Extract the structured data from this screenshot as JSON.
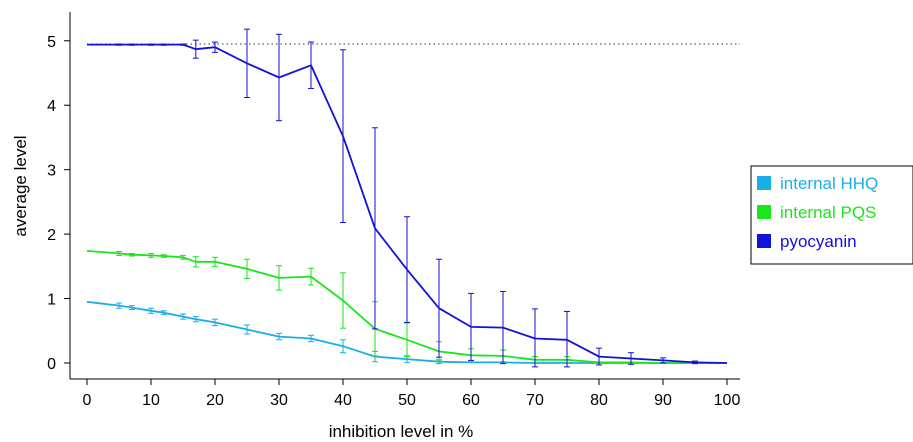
{
  "chart_data": {
    "type": "line",
    "title": "",
    "xlabel": "inhibition level in %",
    "ylabel": "average level",
    "xlim": [
      0,
      100
    ],
    "ylim": [
      0,
      5
    ],
    "xticks": [
      0,
      10,
      20,
      30,
      40,
      50,
      60,
      70,
      80,
      90,
      100
    ],
    "yticks": [
      0,
      1,
      2,
      3,
      4,
      5
    ],
    "x_tick_labels": [
      "0",
      "10",
      "20",
      "30",
      "40",
      "50",
      "60",
      "70",
      "80",
      "90",
      "100"
    ],
    "y_tick_labels": [
      "0",
      "1",
      "2",
      "3",
      "4",
      "5"
    ],
    "grid": false,
    "reference_line": {
      "y": 4.95,
      "style": "dotted"
    },
    "legend_position": "right",
    "series": [
      {
        "name": "internal HHQ",
        "color": "#1aaee8",
        "points": [
          {
            "x": 0,
            "y": 0.95
          },
          {
            "x": 5,
            "y": 0.89,
            "err": 0.04
          },
          {
            "x": 7,
            "y": 0.86,
            "err": 0.03
          },
          {
            "x": 10,
            "y": 0.81,
            "err": 0.04
          },
          {
            "x": 12,
            "y": 0.78,
            "err": 0.03
          },
          {
            "x": 15,
            "y": 0.72,
            "err": 0.04
          },
          {
            "x": 17,
            "y": 0.68,
            "err": 0.04
          },
          {
            "x": 20,
            "y": 0.63,
            "err": 0.05
          },
          {
            "x": 25,
            "y": 0.52,
            "err": 0.07
          },
          {
            "x": 30,
            "y": 0.41,
            "err": 0.05
          },
          {
            "x": 35,
            "y": 0.38,
            "err": 0.05
          },
          {
            "x": 40,
            "y": 0.26,
            "err": 0.1
          },
          {
            "x": 45,
            "y": 0.1,
            "err": 0.08
          },
          {
            "x": 50,
            "y": 0.06,
            "err": 0.05
          },
          {
            "x": 55,
            "y": 0.02,
            "err": 0.03
          },
          {
            "x": 60,
            "y": 0.01
          },
          {
            "x": 65,
            "y": 0.01
          },
          {
            "x": 70,
            "y": 0.0
          },
          {
            "x": 75,
            "y": 0.0
          },
          {
            "x": 80,
            "y": 0.0
          },
          {
            "x": 85,
            "y": 0.0
          },
          {
            "x": 90,
            "y": 0.0
          },
          {
            "x": 95,
            "y": 0.0
          },
          {
            "x": 100,
            "y": 0.0
          }
        ]
      },
      {
        "name": "internal PQS",
        "color": "#1be51b",
        "points": [
          {
            "x": 0,
            "y": 1.74
          },
          {
            "x": 5,
            "y": 1.7,
            "err": 0.03
          },
          {
            "x": 7,
            "y": 1.68,
            "err": 0.02
          },
          {
            "x": 10,
            "y": 1.67,
            "err": 0.03
          },
          {
            "x": 12,
            "y": 1.66,
            "err": 0.02
          },
          {
            "x": 15,
            "y": 1.64,
            "err": 0.03
          },
          {
            "x": 17,
            "y": 1.57,
            "err": 0.08
          },
          {
            "x": 20,
            "y": 1.57,
            "err": 0.07
          },
          {
            "x": 25,
            "y": 1.46,
            "err": 0.15
          },
          {
            "x": 30,
            "y": 1.32,
            "err": 0.19
          },
          {
            "x": 35,
            "y": 1.34,
            "err": 0.13
          },
          {
            "x": 40,
            "y": 0.97,
            "err": 0.43
          },
          {
            "x": 45,
            "y": 0.53,
            "err": 0.42
          },
          {
            "x": 50,
            "y": 0.36,
            "err": 0.26
          },
          {
            "x": 55,
            "y": 0.18,
            "err": 0.15
          },
          {
            "x": 60,
            "y": 0.12,
            "err": 0.1
          },
          {
            "x": 65,
            "y": 0.11,
            "err": 0.09
          },
          {
            "x": 70,
            "y": 0.05,
            "err": 0.05
          },
          {
            "x": 75,
            "y": 0.05,
            "err": 0.05
          },
          {
            "x": 80,
            "y": 0.01
          },
          {
            "x": 85,
            "y": 0.01
          },
          {
            "x": 90,
            "y": 0.0
          },
          {
            "x": 95,
            "y": 0.0
          },
          {
            "x": 100,
            "y": 0.0
          }
        ]
      },
      {
        "name": "pyocyanin",
        "color": "#1212d8",
        "points": [
          {
            "x": 0,
            "y": 4.94
          },
          {
            "x": 5,
            "y": 4.94,
            "err": 0.01
          },
          {
            "x": 7,
            "y": 4.94,
            "err": 0.01
          },
          {
            "x": 10,
            "y": 4.94,
            "err": 0.01
          },
          {
            "x": 12,
            "y": 4.94,
            "err": 0.01
          },
          {
            "x": 15,
            "y": 4.94,
            "err": 0.01
          },
          {
            "x": 17,
            "y": 4.87,
            "err": 0.14
          },
          {
            "x": 20,
            "y": 4.9,
            "err": 0.08
          },
          {
            "x": 25,
            "y": 4.65,
            "err": 0.53
          },
          {
            "x": 30,
            "y": 4.43,
            "err": 0.67
          },
          {
            "x": 35,
            "y": 4.62,
            "err": 0.36
          },
          {
            "x": 40,
            "y": 3.52,
            "err": 1.34
          },
          {
            "x": 45,
            "y": 2.09,
            "err": 1.56
          },
          {
            "x": 50,
            "y": 1.45,
            "err": 0.82
          },
          {
            "x": 55,
            "y": 0.85,
            "err": 0.76
          },
          {
            "x": 60,
            "y": 0.56,
            "err": 0.52
          },
          {
            "x": 65,
            "y": 0.55,
            "err": 0.56
          },
          {
            "x": 70,
            "y": 0.38,
            "err": 0.46
          },
          {
            "x": 75,
            "y": 0.36,
            "err": 0.44
          },
          {
            "x": 80,
            "y": 0.1,
            "err": 0.13
          },
          {
            "x": 85,
            "y": 0.07,
            "err": 0.09
          },
          {
            "x": 90,
            "y": 0.04,
            "err": 0.04
          },
          {
            "x": 95,
            "y": 0.01,
            "err": 0.02
          },
          {
            "x": 100,
            "y": 0.0
          }
        ]
      }
    ]
  }
}
